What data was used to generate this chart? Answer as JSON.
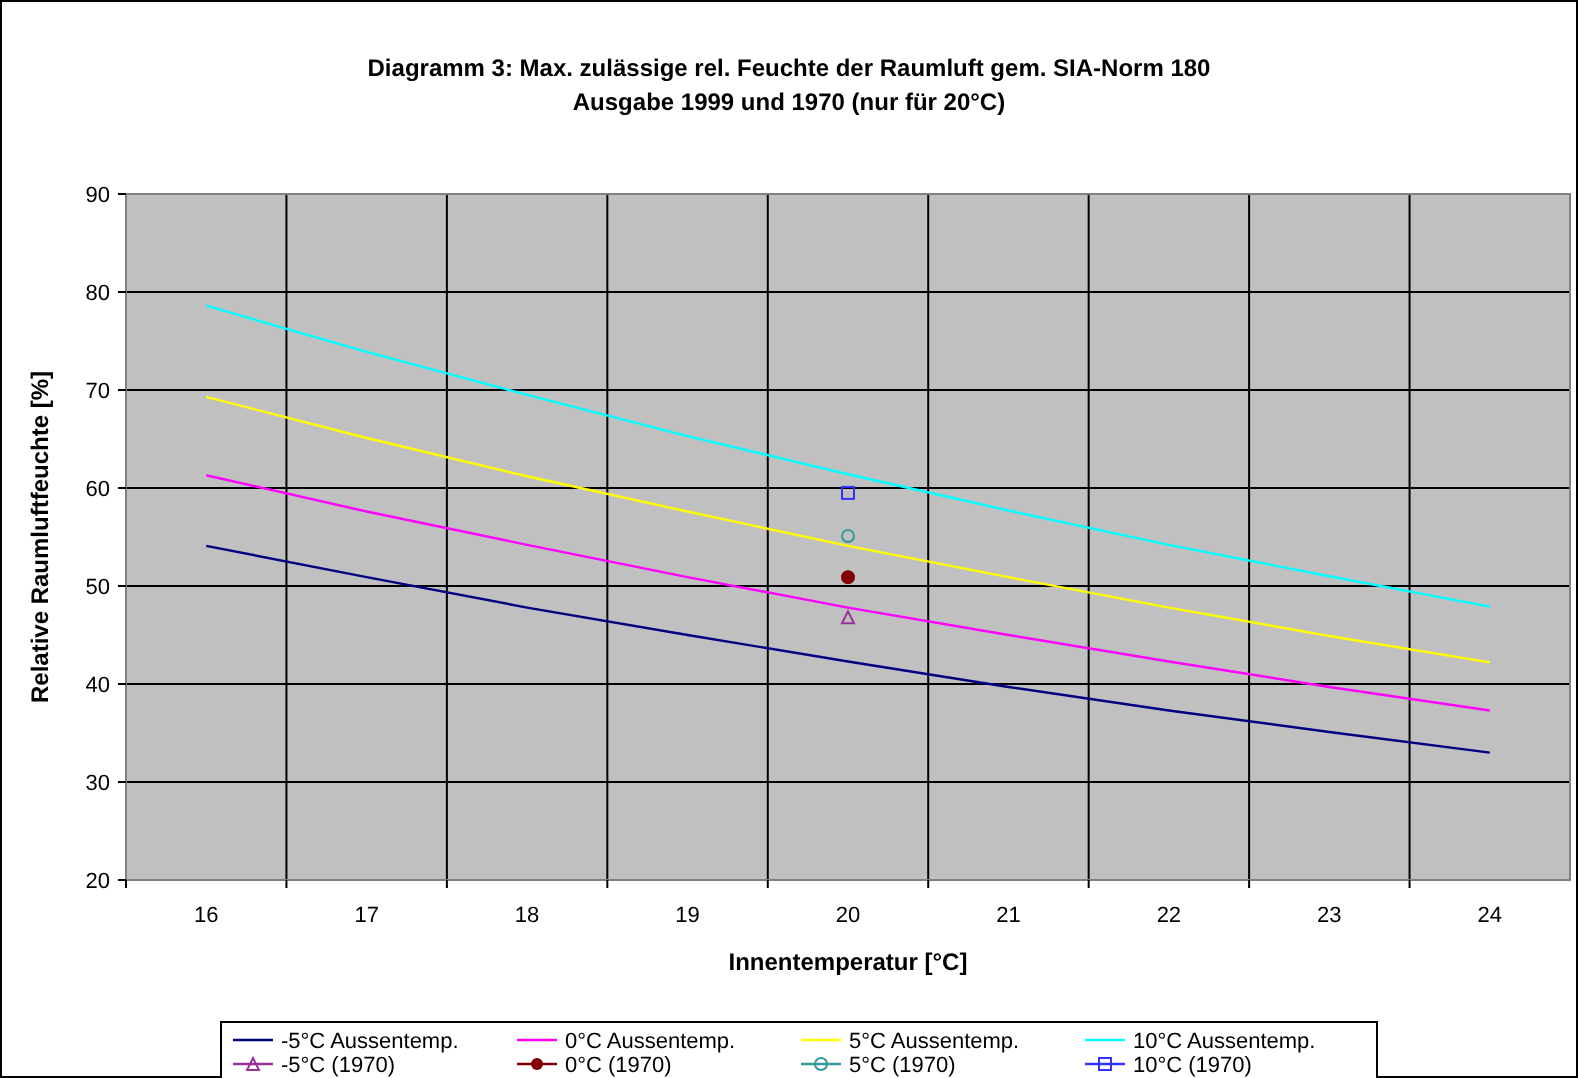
{
  "chart_data": {
    "type": "line",
    "title": "Diagramm 3: Max. zulässige rel. Feuchte der Raumluft gem. SIA-Norm 180\nAusgabe 1999 und 1970 (nur für 20°C)",
    "xlabel": "Innentemperatur [°C]",
    "ylabel": "Relative Raumluftfeuchte [%]",
    "categories": [
      "16",
      "17",
      "18",
      "19",
      "20",
      "21",
      "22",
      "23",
      "24"
    ],
    "ylim": [
      20,
      90
    ],
    "yticks": [
      20,
      30,
      40,
      50,
      60,
      70,
      80,
      90
    ],
    "grid": true,
    "legend": "bottom",
    "marker": "none",
    "series": [
      {
        "name": "-5°C Aussentemp.",
        "color": "#000080",
        "values": [
          54.1,
          50.9,
          47.8,
          45.0,
          42.3,
          39.7,
          37.3,
          35.1,
          33.0
        ]
      },
      {
        "name": "0°C Aussentemp.",
        "color": "#ff00ff",
        "values": [
          61.3,
          57.6,
          54.2,
          50.9,
          47.8,
          45.0,
          42.3,
          39.7,
          37.3
        ]
      },
      {
        "name": "5°C Aussentemp.",
        "color": "#ffff00",
        "values": [
          69.3,
          65.1,
          61.2,
          57.6,
          54.1,
          50.9,
          47.8,
          44.9,
          42.2
        ]
      },
      {
        "name": "10°C Aussentemp.",
        "color": "#00ffff",
        "values": [
          78.6,
          73.9,
          69.5,
          65.3,
          61.4,
          57.7,
          54.2,
          51.0,
          47.9
        ]
      },
      {
        "name": "-5°C (1970)",
        "type": "scatter",
        "marker": "triangle",
        "color": "#993399",
        "values": [
          null,
          null,
          null,
          null,
          46.8,
          null,
          null,
          null,
          null
        ]
      },
      {
        "name": "0°C (1970)",
        "type": "scatter",
        "marker": "circle",
        "color": "#800000",
        "values": [
          null,
          null,
          null,
          null,
          50.9,
          null,
          null,
          null,
          null
        ]
      },
      {
        "name": "5°C (1970)",
        "type": "scatter",
        "marker": "circle",
        "color": "#339999",
        "values": [
          null,
          null,
          null,
          null,
          55.1,
          null,
          null,
          null,
          null
        ]
      },
      {
        "name": "10°C (1970)",
        "type": "scatter",
        "marker": "square",
        "color": "#3333ff",
        "values": [
          null,
          null,
          null,
          null,
          59.5,
          null,
          null,
          null,
          null
        ]
      }
    ]
  }
}
